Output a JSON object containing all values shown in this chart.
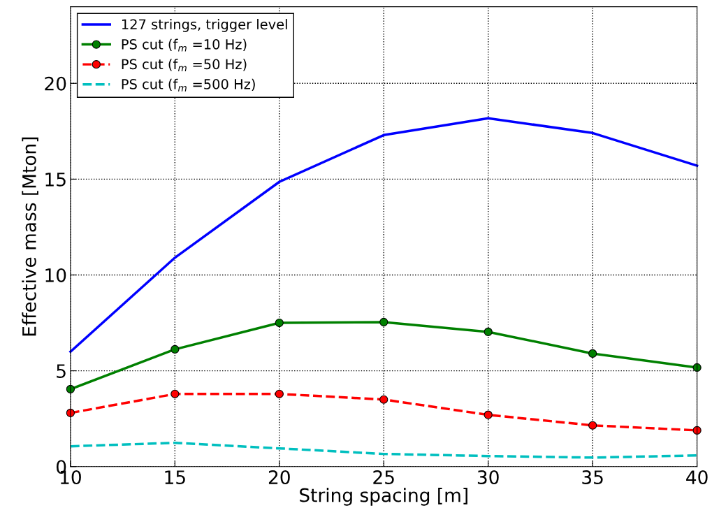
{
  "chart_data": {
    "type": "line",
    "xlabel": "String spacing [m]",
    "ylabel": "Effective mass [Mton]",
    "x": [
      10,
      15,
      20,
      25,
      30,
      35,
      40
    ],
    "series": [
      {
        "name": "127 strings, trigger level",
        "color": "#0000ff",
        "marker": "none",
        "line_style": "solid",
        "values": [
          6.0,
          10.9,
          14.86,
          17.3,
          18.18,
          17.41,
          15.7
        ]
      },
      {
        "name": "PS cut (f$_{m}$ =10 Hz)",
        "color": "#008000",
        "marker": "circle",
        "line_style": "solid",
        "values": [
          4.04,
          6.12,
          7.5,
          7.54,
          7.03,
          5.9,
          5.17
        ]
      },
      {
        "name": "PS cut (f$_{m}$ =50 Hz)",
        "color": "#ff0000",
        "marker": "circle",
        "line_style": "dashed",
        "values": [
          2.8,
          3.79,
          3.79,
          3.5,
          2.7,
          2.15,
          1.89
        ]
      },
      {
        "name": "PS cut (f$_{m}$ =500 Hz)",
        "color": "#00bfbf",
        "marker": "none",
        "line_style": "dashed",
        "values": [
          1.06,
          1.24,
          0.95,
          0.66,
          0.55,
          0.47,
          0.58
        ]
      }
    ],
    "xlim": [
      10,
      40
    ],
    "xticks": [
      10,
      15,
      20,
      25,
      30,
      35,
      40
    ],
    "ylim": [
      0,
      24
    ],
    "yticks": [
      0,
      5,
      10,
      15,
      20
    ],
    "grid": true,
    "legend": "top left"
  }
}
